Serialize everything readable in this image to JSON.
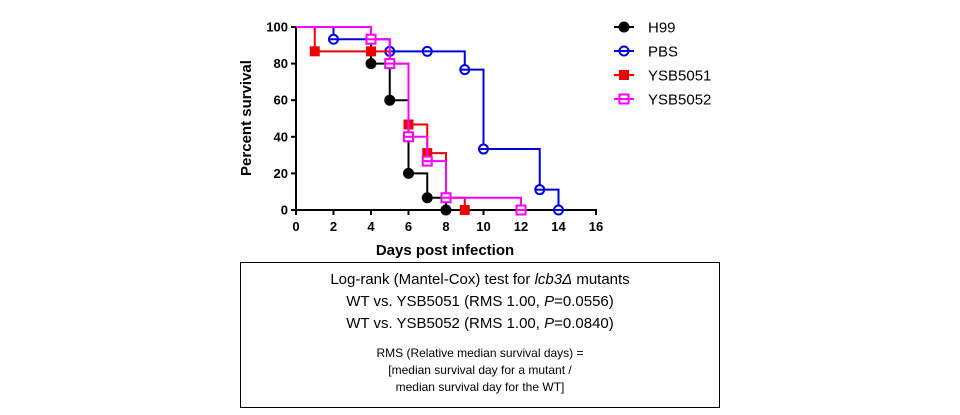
{
  "chart_data": {
    "type": "line",
    "step": true,
    "xlabel": "Days post infection",
    "ylabel": "Percent survival",
    "xlim": [
      0,
      16
    ],
    "ylim": [
      0,
      100
    ],
    "xticks": [
      0,
      2,
      4,
      6,
      8,
      10,
      12,
      14,
      16
    ],
    "yticks": [
      0,
      20,
      40,
      60,
      80,
      100
    ],
    "grid": false,
    "legend_position": "right",
    "series": [
      {
        "name": "H99",
        "color": "#000000",
        "marker": "filled-circle",
        "steps": [
          [
            0,
            100
          ],
          [
            4,
            80
          ],
          [
            5,
            60
          ],
          [
            6,
            20
          ],
          [
            7,
            6.7
          ],
          [
            8,
            0
          ]
        ],
        "markers": [
          [
            4,
            80
          ],
          [
            5,
            60
          ],
          [
            6,
            20
          ],
          [
            7,
            6.7
          ],
          [
            8,
            0
          ]
        ]
      },
      {
        "name": "PBS",
        "color": "#0000dd",
        "marker": "open-circle",
        "steps": [
          [
            0,
            100
          ],
          [
            2,
            93.3
          ],
          [
            5,
            86.7
          ],
          [
            9,
            76.7
          ],
          [
            10,
            33.3
          ],
          [
            13,
            11.1
          ],
          [
            14,
            0
          ]
        ],
        "markers": [
          [
            2,
            93.3
          ],
          [
            5,
            86.7
          ],
          [
            7,
            86.7
          ],
          [
            9,
            76.7
          ],
          [
            10,
            33.3
          ],
          [
            13,
            11.1
          ],
          [
            14,
            0
          ]
        ]
      },
      {
        "name": "YSB5051",
        "color": "#ee0000",
        "marker": "filled-square",
        "steps": [
          [
            0,
            100
          ],
          [
            1,
            86.7
          ],
          [
            4,
            86.7
          ],
          [
            5,
            80
          ],
          [
            6,
            46.7
          ],
          [
            7,
            31.1
          ],
          [
            8,
            6.7
          ],
          [
            9,
            0
          ]
        ],
        "markers": [
          [
            1,
            86.7
          ],
          [
            4,
            86.7
          ],
          [
            5,
            80
          ],
          [
            6,
            46.7
          ],
          [
            7,
            31.1
          ],
          [
            8,
            6.7
          ],
          [
            9,
            0
          ]
        ]
      },
      {
        "name": "YSB5052",
        "color": "#ff00ff",
        "marker": "open-square",
        "steps": [
          [
            0,
            100
          ],
          [
            4,
            93.3
          ],
          [
            5,
            80
          ],
          [
            6,
            40
          ],
          [
            7,
            26.7
          ],
          [
            8,
            6.7
          ],
          [
            12,
            0
          ]
        ],
        "markers": [
          [
            4,
            93.3
          ],
          [
            5,
            80
          ],
          [
            6,
            40
          ],
          [
            7,
            26.7
          ],
          [
            8,
            6.7
          ],
          [
            12,
            0
          ]
        ]
      }
    ]
  },
  "stats": {
    "title_prefix": "Log-rank (Mantel-Cox) test for ",
    "title_gene": "lcb3Δ",
    "title_suffix": " mutants",
    "line1_prefix": "WT vs. YSB5051 (RMS 1.00, ",
    "line1_p": "P",
    "line1_suffix": "=0.0556)",
    "line2_prefix": "WT vs. YSB5052 (RMS 1.00, ",
    "line2_p": "P",
    "line2_suffix": "=0.0840)",
    "rms_line1": "RMS (Relative median survival days) =",
    "rms_line2": "[median survival day for a mutant  /",
    "rms_line3": "median survival day for the WT]"
  }
}
